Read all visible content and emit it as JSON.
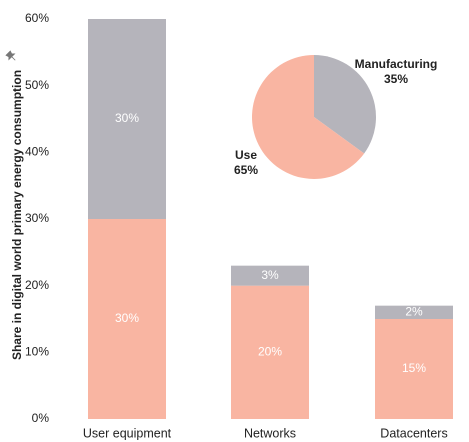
{
  "chart_data": [
    {
      "type": "bar",
      "stacked": true,
      "ylabel": "Share in digital world primary energy consumption",
      "ylim": [
        0,
        60
      ],
      "yticks": [
        "0%",
        "10%",
        "20%",
        "30%",
        "40%",
        "50%",
        "60%"
      ],
      "grid": false,
      "categories": [
        "User equipment",
        "Networks",
        "Datacenters"
      ],
      "series": [
        {
          "values": [
            30,
            20,
            15
          ],
          "labels": [
            "30%",
            "20%",
            "15%"
          ],
          "color": "#f9b5a2"
        },
        {
          "values": [
            30,
            3,
            2
          ],
          "labels": [
            "30%",
            "3%",
            "2%"
          ],
          "color": "#b5b4bb"
        }
      ]
    },
    {
      "type": "pie",
      "slices": [
        {
          "name": "Manufacturing",
          "value": 35,
          "label": "35%",
          "color": "#b5b4bb"
        },
        {
          "name": "Use",
          "value": 65,
          "label": "65%",
          "color": "#f9b5a2"
        }
      ]
    }
  ],
  "icons": {
    "axis_title_marker": "pin-icon"
  }
}
